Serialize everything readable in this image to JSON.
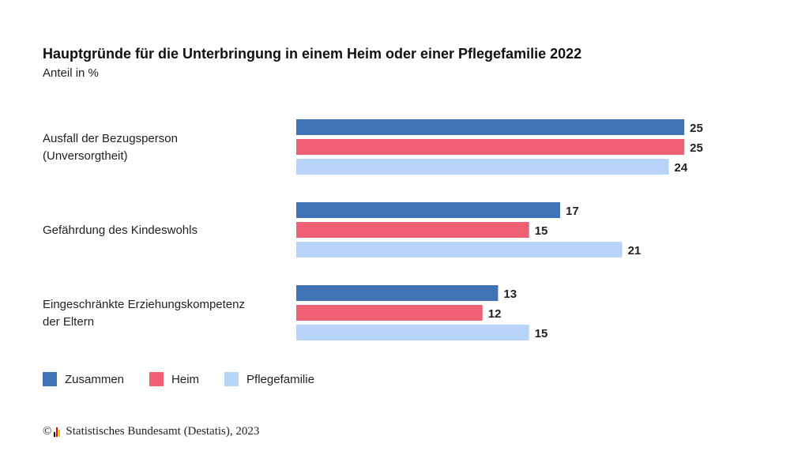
{
  "title": "Hauptgründe für die Unterbringung in einem Heim oder einer Pflegefamilie 2022",
  "subtitle": "Anteil in %",
  "source": {
    "copyright_symbol": "©",
    "text": "Statistisches Bundesamt (Destatis), 2023",
    "logo_icon": "destatis-logo-icon",
    "logo_colors": [
      "#000000",
      "#e30613",
      "#ffcc00"
    ]
  },
  "chart_data": {
    "type": "bar",
    "orientation": "horizontal",
    "title": "Hauptgründe für die Unterbringung in einem Heim oder einer Pflegefamilie 2022",
    "subtitle": "Anteil in %",
    "categories": [
      [
        "Ausfall der Bezugsperson",
        "(Unversorgtheit)"
      ],
      [
        "Gefährdung des Kindeswohls"
      ],
      [
        "Eingeschränkte Erziehungskompetenz",
        "der Eltern"
      ]
    ],
    "series": [
      {
        "name": "Zusammen",
        "color": "#4072b8",
        "values": [
          25,
          17,
          13
        ]
      },
      {
        "name": "Heim",
        "color": "#ef6075",
        "values": [
          25,
          15,
          12
        ]
      },
      {
        "name": "Pflegefamilie",
        "color": "#b8d4fb",
        "values": [
          24,
          21,
          15
        ]
      }
    ],
    "xlim": [
      0,
      25.5
    ],
    "grid": false,
    "legend_position": "bottom-left",
    "data_labels": true
  }
}
